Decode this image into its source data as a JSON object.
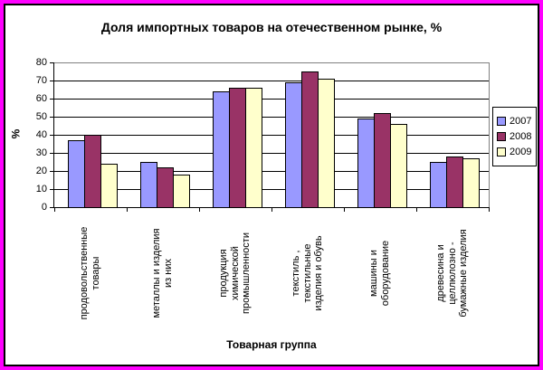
{
  "window": {
    "outer_border_color": "#FF00FF",
    "inner_border_color": "#000000",
    "background": "#FFFFFF"
  },
  "chart_data": {
    "type": "bar",
    "title": "Доля импортных товаров на отечественном рынке, %",
    "categories": [
      "продовольственные\nтовары",
      "металлы и изделия\nиз них",
      "продукция\nхимической\nпромышленности",
      "текстиль ,\nтекстильные\nизделия и обувь",
      "машины и\nоборудование",
      "древесина и\nцеллюлозно -\nбумажные изделия"
    ],
    "series": [
      {
        "name": "2007",
        "color": "#9999FF",
        "values": [
          37,
          25,
          64,
          69,
          49,
          25
        ]
      },
      {
        "name": "2008",
        "color": "#993366",
        "values": [
          40,
          22,
          66,
          75,
          52,
          28
        ]
      },
      {
        "name": "2009",
        "color": "#FFFFCC",
        "values": [
          24,
          18,
          66,
          71,
          46,
          27
        ]
      }
    ],
    "xlabel": "Товарная группа",
    "ylabel": "%",
    "ylim": [
      0,
      80
    ],
    "y_ticks": [
      0,
      10,
      20,
      30,
      40,
      50,
      60,
      70,
      80
    ],
    "grid": true,
    "legend_position": "right",
    "colors": {
      "plot_border": "#808080",
      "gridline": "#000000",
      "axis": "#000000",
      "plot_background": "#FFFFFF"
    }
  }
}
